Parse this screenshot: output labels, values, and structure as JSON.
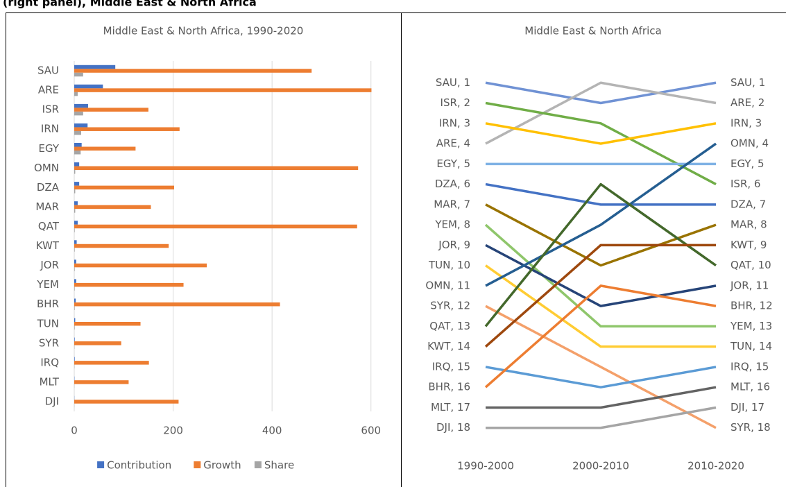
{
  "caption": "(right panel), Middle East & North Africa",
  "chart_data": [
    {
      "type": "bar",
      "orientation": "horizontal",
      "title": "Middle East & North Africa, 1990-2020",
      "categories": [
        "SAU",
        "ARE",
        "ISR",
        "IRN",
        "EGY",
        "OMN",
        "DZA",
        "MAR",
        "QAT",
        "KWT",
        "JOR",
        "YEM",
        "BHR",
        "TUN",
        "SYR",
        "IRQ",
        "MLT",
        "DJI"
      ],
      "series": [
        {
          "name": "Contribution",
          "color": "#4472c4",
          "values": [
            83,
            58,
            28,
            27,
            15,
            10,
            10,
            7,
            7,
            5,
            4,
            4,
            3,
            2,
            1,
            1,
            0.5,
            0.3
          ]
        },
        {
          "name": "Growth",
          "color": "#ed7d31",
          "values": [
            480,
            601,
            150,
            213,
            124,
            574,
            202,
            155,
            572,
            191,
            268,
            221,
            416,
            134,
            95,
            151,
            110,
            211
          ]
        },
        {
          "name": "Share",
          "color": "#a5a5a5",
          "values": [
            18,
            7,
            18,
            14,
            13,
            2,
            2,
            2,
            1,
            1,
            1,
            1,
            1,
            1,
            0.5,
            0.5,
            0.2,
            0.2
          ]
        }
      ],
      "xlim": [
        0,
        620
      ],
      "xticks": [
        0,
        200,
        400,
        600
      ],
      "grid": true,
      "legend": "bottom"
    },
    {
      "type": "line",
      "title": "Middle East & North Africa",
      "categories": [
        "1990-2000",
        "2000-2010",
        "2010-2020"
      ],
      "ylim": [
        19,
        0
      ],
      "series": [
        {
          "name": "SAU",
          "color": "#7092d4",
          "values": [
            1,
            2,
            1
          ],
          "value_labels": [
            "SAU, 1",
            null,
            "SAU, 1"
          ]
        },
        {
          "name": "ARE",
          "color": "#b4b4b4",
          "values": [
            4,
            1,
            2
          ],
          "value_labels": [
            "ARE, 4",
            null,
            "ARE, 2"
          ]
        },
        {
          "name": "ISR",
          "color": "#70ad47",
          "values": [
            2,
            3,
            6
          ],
          "value_labels": [
            "ISR, 2",
            null,
            "ISR, 6"
          ]
        },
        {
          "name": "IRN",
          "color": "#ffc000",
          "values": [
            3,
            4,
            3
          ],
          "value_labels": [
            "IRN, 3",
            null,
            "IRN, 3"
          ]
        },
        {
          "name": "EGY",
          "color": "#7fb2e5",
          "values": [
            5,
            5,
            5
          ],
          "value_labels": [
            "EGY, 5",
            null,
            "EGY, 5"
          ]
        },
        {
          "name": "DZA",
          "color": "#4472c4",
          "values": [
            6,
            7,
            7
          ],
          "value_labels": [
            "DZA, 6",
            null,
            "DZA, 7"
          ]
        },
        {
          "name": "MAR",
          "color": "#997300",
          "values": [
            7,
            10,
            8
          ],
          "value_labels": [
            "MAR, 7",
            null,
            "MAR, 8"
          ]
        },
        {
          "name": "YEM",
          "color": "#8fc66b",
          "values": [
            8,
            13,
            13
          ],
          "value_labels": [
            "YEM, 8",
            null,
            "YEM, 13"
          ]
        },
        {
          "name": "JOR",
          "color": "#264478",
          "values": [
            9,
            12,
            11
          ],
          "value_labels": [
            "JOR, 9",
            null,
            "JOR, 11"
          ]
        },
        {
          "name": "TUN",
          "color": "#ffcc33",
          "values": [
            10,
            14,
            14
          ],
          "value_labels": [
            "TUN, 10",
            null,
            "TUN, 14"
          ]
        },
        {
          "name": "OMN",
          "color": "#255e91",
          "values": [
            11,
            8,
            4
          ],
          "value_labels": [
            "OMN, 11",
            null,
            "OMN, 4"
          ]
        },
        {
          "name": "SYR",
          "color": "#f4a06a",
          "values": [
            12,
            15,
            18
          ],
          "value_labels": [
            "SYR, 12",
            null,
            "SYR, 18"
          ]
        },
        {
          "name": "QAT",
          "color": "#43682b",
          "values": [
            13,
            6,
            10
          ],
          "value_labels": [
            "QAT, 13",
            null,
            "QAT, 10"
          ]
        },
        {
          "name": "KWT",
          "color": "#9e480e",
          "values": [
            14,
            9,
            9
          ],
          "value_labels": [
            "KWT, 14",
            null,
            "KWT, 9"
          ]
        },
        {
          "name": "IRQ",
          "color": "#5b9bd5",
          "values": [
            15,
            16,
            15
          ],
          "value_labels": [
            "IRQ, 15",
            null,
            "IRQ, 15"
          ]
        },
        {
          "name": "BHR",
          "color": "#ed7d31",
          "values": [
            16,
            11,
            12
          ],
          "value_labels": [
            "BHR, 16",
            null,
            "BHR, 12"
          ]
        },
        {
          "name": "MLT",
          "color": "#636363",
          "values": [
            17,
            17,
            16
          ],
          "value_labels": [
            "MLT, 17",
            null,
            "MLT, 16"
          ]
        },
        {
          "name": "DJI",
          "color": "#a5a5a5",
          "values": [
            18,
            18,
            17
          ],
          "value_labels": [
            "DJI, 18",
            null,
            "DJI, 17"
          ]
        }
      ]
    }
  ]
}
